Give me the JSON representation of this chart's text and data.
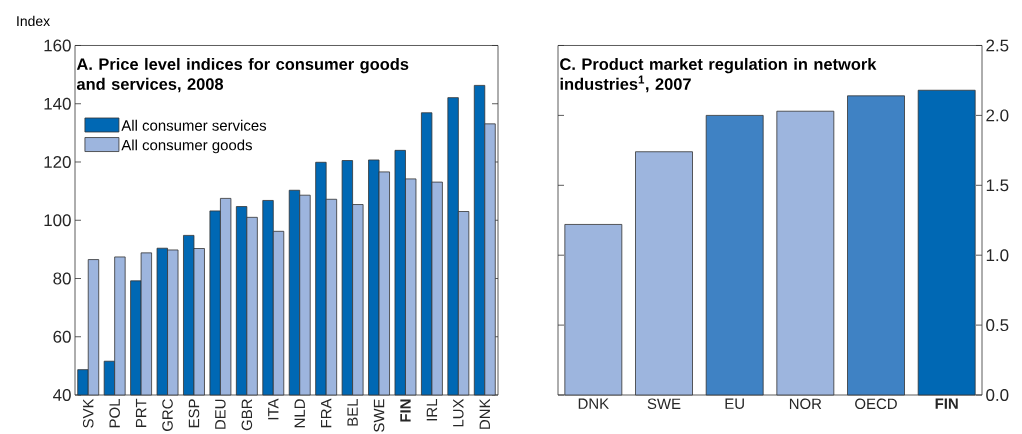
{
  "chart_data": [
    {
      "type": "bar",
      "title": "A. Price level indices for consumer goods and services, 2008",
      "ylabel": "Index",
      "categories": [
        "SVK",
        "POL",
        "PRT",
        "GRC",
        "ESP",
        "DEU",
        "GBR",
        "ITA",
        "NLD",
        "FRA",
        "BEL",
        "SWE",
        "**FIN**",
        "IRL",
        "LUX",
        "DNK"
      ],
      "series": [
        {
          "name": "All consumer services",
          "color": "#0068b4",
          "values": [
            48.7,
            51.6,
            79.2,
            90.4,
            94.8,
            103.2,
            104.7,
            106.8,
            110.3,
            119.9,
            120.5,
            120.7,
            124.0,
            136.9,
            142.1,
            146.3
          ]
        },
        {
          "name": "All consumer goods",
          "color": "#9db5de",
          "values": [
            86.5,
            87.4,
            88.8,
            89.8,
            90.3,
            107.5,
            101.0,
            96.2,
            108.6,
            107.2,
            105.4,
            116.6,
            114.2,
            113.1,
            103.0,
            133.1
          ]
        }
      ],
      "ylim": [
        40,
        160
      ],
      "yticks": [
        40,
        60,
        80,
        100,
        120,
        140,
        160
      ],
      "legend": "top left"
    },
    {
      "type": "bar",
      "title": "C. Product market regulation in network industries$^{1}$, 2007",
      "categories": [
        "DNK",
        "SWE",
        "EU",
        "NOR",
        "OECD",
        "**FIN**"
      ],
      "values": [
        1.22,
        1.74,
        2.0,
        2.03,
        2.14,
        2.18
      ],
      "colors": [
        "#9db5de",
        "#9db5de",
        "#3f82c4",
        "#9db5de",
        "#3f82c4",
        "#0068b4"
      ],
      "ylim": [
        0,
        2.5
      ],
      "yticks": [
        {
          "value": 0,
          "label": "0.0"
        },
        0.5,
        {
          "value": 1,
          "label": "1.0"
        },
        1.5,
        {
          "value": 2,
          "label": "2.0"
        },
        2.5
      ]
    }
  ]
}
